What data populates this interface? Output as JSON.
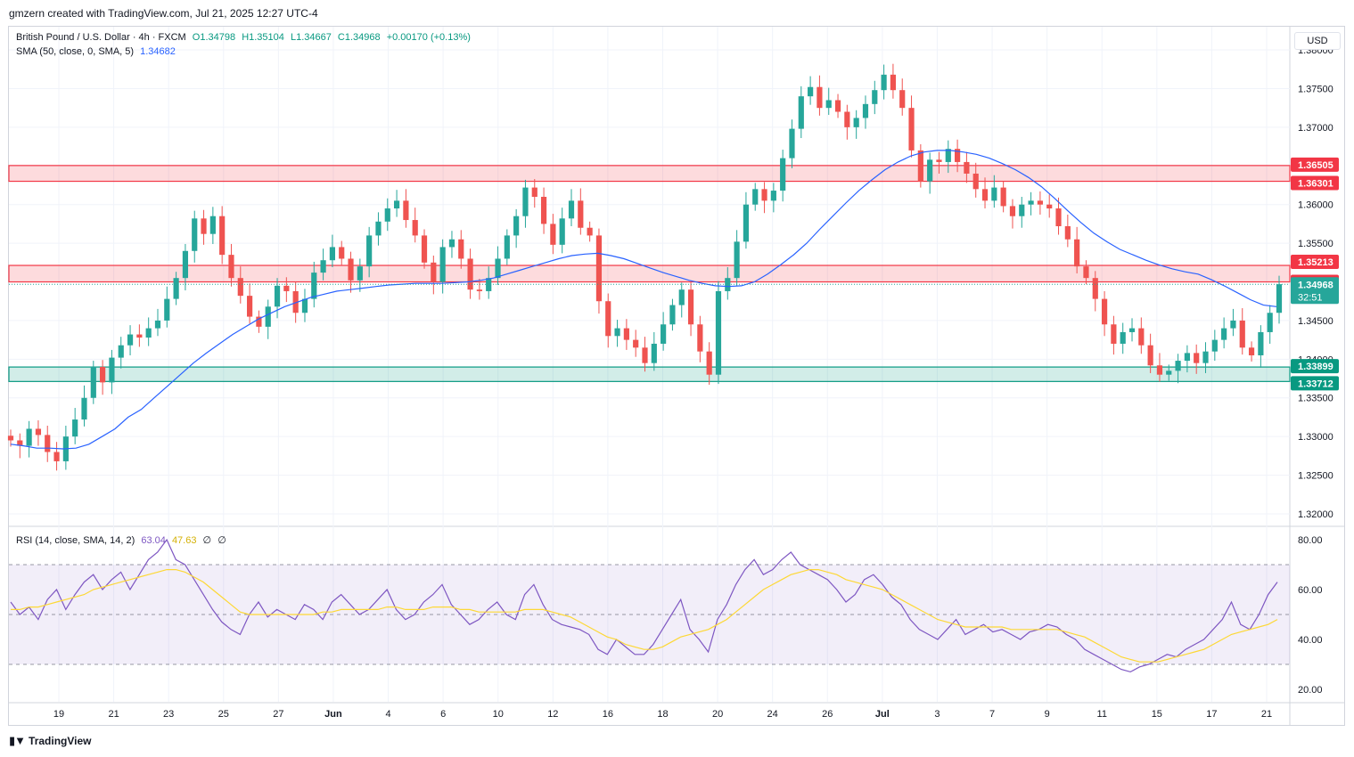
{
  "header": {
    "attribution": "gmzern created with TradingView.com, Jul 21, 2025 12:27 UTC-4"
  },
  "legend": {
    "symbol": "British Pound / U.S. Dollar · 4h · FXCM",
    "open": "O1.34798",
    "high": "H1.35104",
    "low": "L1.34667",
    "close": "C1.34968",
    "change": "+0.00170 (+0.13%)",
    "sma_label": "SMA (50, close, 0, SMA, 5)",
    "sma_value": "1.34682",
    "rsi_label": "RSI (14, close, SMA, 14, 2)",
    "rsi_value": "63.04",
    "rsi_sma_value": "47.63",
    "rsi_extra1": "∅",
    "rsi_extra2": "∅"
  },
  "currency_button": "USD",
  "footer": {
    "brand": "TradingView",
    "logo_icon": "tradingview-logo-icon"
  },
  "colors": {
    "up": "#26a69a",
    "down": "#ef5350",
    "sma": "#2962ff",
    "rsi": "#7e57c2",
    "rsi_sma": "#fdd835",
    "resistance": "#f23645",
    "support": "#089981"
  },
  "chart_data": {
    "type": "candlestick",
    "title": "British Pound / U.S. Dollar · 4h · FXCM",
    "price_axis": {
      "min": 1.32,
      "max": 1.38,
      "ticks": [
        "1.38000",
        "1.37500",
        "1.37000",
        "1.36500",
        "1.36000",
        "1.35500",
        "1.35000",
        "1.34500",
        "1.34000",
        "1.33500",
        "1.33000",
        "1.32500",
        "1.32000"
      ]
    },
    "time_axis": {
      "labels": [
        "19",
        "21",
        "23",
        "25",
        "27",
        "Jun",
        "4",
        "6",
        "10",
        "12",
        "16",
        "18",
        "20",
        "24",
        "26",
        "Jul",
        "3",
        "7",
        "9",
        "11",
        "15",
        "17",
        "21"
      ]
    },
    "price_closes": [
      1.3295,
      1.3288,
      1.331,
      1.3302,
      1.328,
      1.3268,
      1.33,
      1.3322,
      1.335,
      1.339,
      1.337,
      1.3402,
      1.3418,
      1.3432,
      1.3428,
      1.344,
      1.345,
      1.3478,
      1.3505,
      1.354,
      1.3582,
      1.3562,
      1.3585,
      1.3535,
      1.3505,
      1.3482,
      1.3455,
      1.3442,
      1.3468,
      1.3495,
      1.3488,
      1.346,
      1.3478,
      1.3512,
      1.3528,
      1.3545,
      1.353,
      1.3502,
      1.352,
      1.356,
      1.3578,
      1.3595,
      1.3605,
      1.358,
      1.356,
      1.3525,
      1.35,
      1.3545,
      1.3555,
      1.353,
      1.349,
      1.3488,
      1.3505,
      1.353,
      1.356,
      1.3585,
      1.3622,
      1.361,
      1.3575,
      1.3548,
      1.3582,
      1.3605,
      1.357,
      1.356,
      1.3475,
      1.343,
      1.344,
      1.3425,
      1.3415,
      1.3395,
      1.342,
      1.3445,
      1.347,
      1.349,
      1.3445,
      1.341,
      1.338,
      1.3488,
      1.3505,
      1.3552,
      1.36,
      1.362,
      1.3605,
      1.3618,
      1.366,
      1.3698,
      1.374,
      1.3752,
      1.3725,
      1.3735,
      1.372,
      1.37,
      1.3712,
      1.373,
      1.3748,
      1.3768,
      1.3748,
      1.3725,
      1.367,
      1.363,
      1.3658,
      1.3655,
      1.3672,
      1.3655,
      1.364,
      1.362,
      1.3605,
      1.3622,
      1.3598,
      1.3585,
      1.36,
      1.3605,
      1.36,
      1.3595,
      1.3572,
      1.3555,
      1.352,
      1.3505,
      1.3478,
      1.3445,
      1.342,
      1.3435,
      1.344,
      1.3418,
      1.3392,
      1.338,
      1.3385,
      1.3398,
      1.3408,
      1.3395,
      1.341,
      1.3425,
      1.344,
      1.345,
      1.3415,
      1.3405,
      1.3435,
      1.346,
      1.3497
    ],
    "sma_values": [
      1.329,
      1.3288,
      1.3285,
      1.3285,
      1.3284,
      1.3285,
      1.329,
      1.33,
      1.331,
      1.3325,
      1.3335,
      1.335,
      1.3365,
      1.338,
      1.3395,
      1.3408,
      1.342,
      1.3432,
      1.3442,
      1.3452,
      1.346,
      1.3468,
      1.3474,
      1.348,
      1.3484,
      1.3488,
      1.349,
      1.3492,
      1.3494,
      1.3496,
      1.3497,
      1.3498,
      1.3498,
      1.3498,
      1.3499,
      1.35,
      1.3502,
      1.3505,
      1.351,
      1.3515,
      1.352,
      1.3525,
      1.353,
      1.3534,
      1.3536,
      1.3537,
      1.3534,
      1.353,
      1.3524,
      1.3518,
      1.3512,
      1.3507,
      1.3502,
      1.3498,
      1.3495,
      1.3494,
      1.3495,
      1.35,
      1.351,
      1.3522,
      1.3535,
      1.355,
      1.3568,
      1.3585,
      1.3602,
      1.3618,
      1.3632,
      1.3645,
      1.3655,
      1.3663,
      1.3668,
      1.367,
      1.367,
      1.3668,
      1.3665,
      1.366,
      1.3653,
      1.3645,
      1.3635,
      1.3623,
      1.3608,
      1.3592,
      1.3577,
      1.3563,
      1.3552,
      1.3542,
      1.3535,
      1.3528,
      1.3522,
      1.3517,
      1.3513,
      1.351,
      1.3503,
      1.3495,
      1.3486,
      1.3477,
      1.347,
      1.3468
    ],
    "support_zone": {
      "top": "1.33899",
      "bottom": "1.33712"
    },
    "resistance_zone_upper": {
      "top": "1.36505",
      "bottom": "1.36301"
    },
    "resistance_zone_lower": {
      "top": "1.35213",
      "bottom": "1.35000"
    },
    "current_price": {
      "value": "1.34968",
      "countdown": "32:51"
    },
    "rsi": {
      "axis_ticks": [
        "80.00",
        "60.00",
        "40.00",
        "20.00"
      ],
      "upper_band": 70,
      "lower_band": 30,
      "values": [
        55,
        50,
        53,
        48,
        56,
        60,
        52,
        58,
        63,
        66,
        60,
        64,
        67,
        60,
        66,
        72,
        75,
        80,
        72,
        70,
        64,
        58,
        52,
        47,
        44,
        42,
        50,
        55,
        49,
        52,
        50,
        48,
        54,
        52,
        48,
        55,
        58,
        54,
        50,
        52,
        56,
        60,
        52,
        48,
        50,
        55,
        58,
        62,
        54,
        50,
        46,
        48,
        52,
        55,
        50,
        48,
        58,
        62,
        54,
        48,
        46,
        45,
        44,
        42,
        36,
        34,
        40,
        37,
        34,
        34,
        38,
        44,
        50,
        56,
        44,
        40,
        35,
        48,
        54,
        62,
        68,
        72,
        66,
        68,
        72,
        75,
        70,
        68,
        66,
        64,
        60,
        55,
        58,
        64,
        66,
        62,
        57,
        54,
        48,
        44,
        42,
        40,
        44,
        48,
        42,
        44,
        46,
        43,
        44,
        42,
        40,
        43,
        44,
        46,
        45,
        42,
        40,
        36,
        34,
        32,
        30,
        28,
        27,
        29,
        30,
        32,
        34,
        33,
        36,
        38,
        40,
        44,
        48,
        55,
        46,
        44,
        50,
        58,
        63
      ],
      "sma_values": [
        52,
        52,
        53,
        53,
        54,
        55,
        56,
        57,
        58,
        60,
        61,
        62,
        63,
        64,
        65,
        66,
        67,
        68,
        68,
        67,
        65,
        63,
        60,
        57,
        54,
        51,
        50,
        50,
        50,
        50,
        50,
        50,
        50,
        50,
        51,
        51,
        52,
        52,
        52,
        52,
        52,
        53,
        53,
        52,
        52,
        52,
        53,
        53,
        53,
        52,
        52,
        51,
        51,
        51,
        51,
        51,
        52,
        52,
        52,
        51,
        50,
        49,
        47,
        45,
        43,
        41,
        40,
        38,
        37,
        36,
        36,
        37,
        39,
        41,
        42,
        43,
        44,
        46,
        48,
        51,
        54,
        57,
        60,
        62,
        64,
        66,
        67,
        68,
        68,
        67,
        66,
        64,
        63,
        62,
        61,
        60,
        58,
        56,
        54,
        52,
        50,
        48,
        47,
        46,
        45,
        45,
        45,
        45,
        45,
        44,
        44,
        44,
        44,
        44,
        44,
        43,
        42,
        41,
        39,
        37,
        35,
        33,
        32,
        31,
        31,
        31,
        32,
        33,
        34,
        35,
        36,
        38,
        40,
        42,
        43,
        44,
        45,
        46,
        48
      ]
    }
  }
}
